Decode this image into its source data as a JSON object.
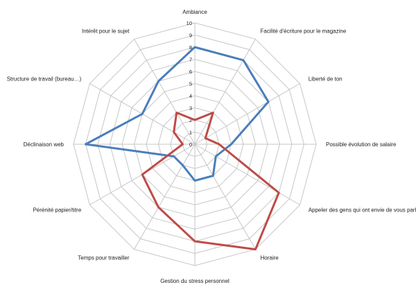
{
  "chart_data": {
    "type": "radar",
    "title": "",
    "categories": [
      "Ambiance",
      "Facilité d'écriture pour le magazine",
      "Liberté de ton",
      "Possible évolution de salaire",
      "Appeler des gens qui ont envie de vous parler",
      "Horaire",
      "Gestion du stress personnel",
      "Temps pour travailler",
      "Pérénité papier/titre",
      "Déclinaison web",
      "Structure de travail (bureau…)",
      "Intérêt pour le sujet"
    ],
    "rlim": [
      0,
      10
    ],
    "ticks": [
      "0",
      "1",
      "2",
      "3",
      "4",
      "5",
      "6",
      "7",
      "8",
      "9",
      "10"
    ],
    "series": [
      {
        "values": [
          8,
          8,
          7,
          3,
          2,
          3,
          3,
          2,
          2,
          9,
          5,
          6
        ],
        "color": "#4a7ebb"
      },
      {
        "values": [
          2,
          3,
          1,
          2,
          8,
          10,
          8,
          6,
          5,
          1,
          2,
          3
        ],
        "color": "#be4b48"
      }
    ],
    "grid": true,
    "legend": "none"
  }
}
